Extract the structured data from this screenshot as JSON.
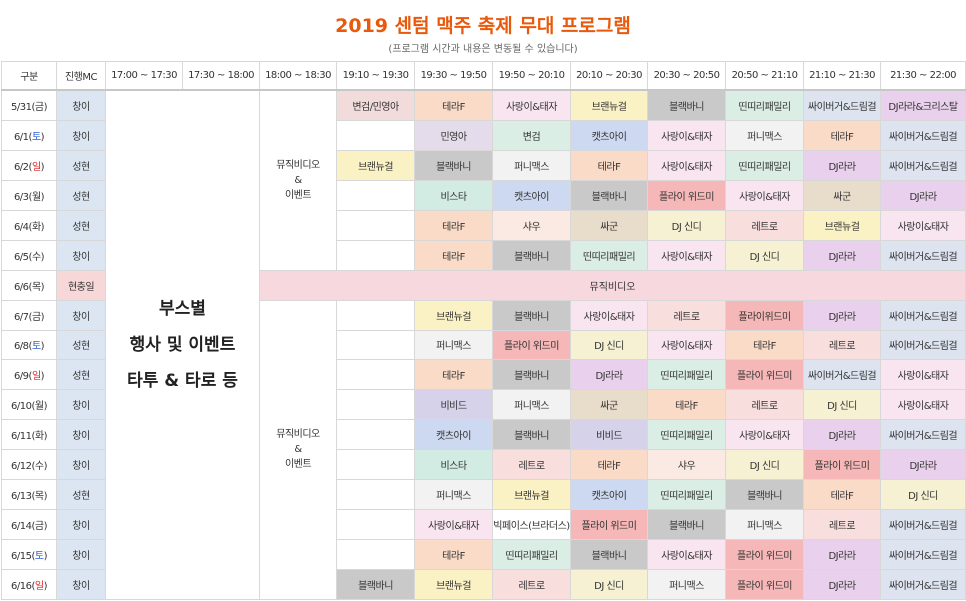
{
  "title": "2019 센텀 맥주 축제 무대 프로그램",
  "subtitle": "(프로그램 시간과 내용은 변동될 수 있습니다)",
  "headers": [
    "구분",
    "진행MC",
    "17:00 ~ 17:30",
    "17:30 ~ 18:00",
    "18:00 ~ 18:30",
    "19:10 ~ 19:30",
    "19:30 ~ 19:50",
    "19:50 ~ 20:10",
    "20:10 ~ 20:30",
    "20:30 ~ 20:50",
    "20:50 ~ 21:10",
    "21:10 ~ 21:30",
    "21:30 ~ 22:00"
  ],
  "booth": {
    "line1": "부스별",
    "line2": "행사 및 이벤트",
    "line3": "타투 & 타로 등"
  },
  "event1": {
    "line1": "뮤직비디오",
    "line2": "&",
    "line3": "이벤트"
  },
  "event2": {
    "line1": "뮤직비디오",
    "line2": "&",
    "line3": "이벤트"
  },
  "banner": "뮤직비디오",
  "colors": {
    "title": "#e8590c",
    "frame": "#f0a05a",
    "sat_day": "#2f5fd0",
    "sun_day": "#e02020",
    "mc_default": "#dce6f2",
    "mc_highlight": "#f7d7d7"
  },
  "rows": [
    {
      "date_pre": "5/31(",
      "day": "금",
      "date_post": ")",
      "mc": "창이",
      "c1910": {
        "t": "변검/민영아",
        "bg": "#f2dcdb"
      },
      "slots": [
        {
          "t": "테라F",
          "bg": "#fadbc8"
        },
        {
          "t": "사랑이&태자",
          "bg": "#f9e5ef"
        },
        {
          "t": "브랜뉴걸",
          "bg": "#faf1c4"
        },
        {
          "t": "블랙바니",
          "bg": "#c9c9c9"
        },
        {
          "t": "띤띠리패밀리",
          "bg": "#dbeee6"
        },
        {
          "t": "싸이버거&드림걸",
          "bg": "#dde3ef"
        },
        {
          "t": "DJ라라&크리스탈",
          "bg": "#e9d0ec"
        }
      ]
    },
    {
      "date_pre": "6/1(",
      "day": "토",
      "date_post": ")",
      "mc": "창이",
      "c1910": {
        "t": "",
        "bg": "#ffffff"
      },
      "slots": [
        {
          "t": "민영아",
          "bg": "#e4dcea"
        },
        {
          "t": "변검",
          "bg": "#dbeee6"
        },
        {
          "t": "캣츠아이",
          "bg": "#cdd9f0"
        },
        {
          "t": "사랑이&태자",
          "bg": "#f9e5ef"
        },
        {
          "t": "퍼니맥스",
          "bg": "#f2f2f2"
        },
        {
          "t": "테라F",
          "bg": "#fadbc8"
        },
        {
          "t": "싸이버거&드림걸",
          "bg": "#dde3ef"
        }
      ]
    },
    {
      "date_pre": "6/2(",
      "day": "일",
      "date_post": ")",
      "mc": "성현",
      "c1910": {
        "t": "브랜뉴걸",
        "bg": "#faf1c4"
      },
      "slots": [
        {
          "t": "블랙바니",
          "bg": "#c9c9c9"
        },
        {
          "t": "퍼니맥스",
          "bg": "#f2f2f2"
        },
        {
          "t": "테라F",
          "bg": "#fadbc8"
        },
        {
          "t": "사랑이&태자",
          "bg": "#f9e5ef"
        },
        {
          "t": "띤띠리패밀리",
          "bg": "#dbeee6"
        },
        {
          "t": "DJ라라",
          "bg": "#e9d0ec"
        },
        {
          "t": "싸이버거&드림걸",
          "bg": "#dde3ef"
        }
      ]
    },
    {
      "date_pre": "6/3(",
      "day": "월",
      "date_post": ")",
      "mc": "성현",
      "c1910": {
        "t": "",
        "bg": "#ffffff"
      },
      "slots": [
        {
          "t": "비스타",
          "bg": "#d2ece4"
        },
        {
          "t": "캣츠아이",
          "bg": "#cdd9f0"
        },
        {
          "t": "블랙바니",
          "bg": "#c9c9c9"
        },
        {
          "t": "플라이 위드미",
          "bg": "#f5b7b7"
        },
        {
          "t": "사랑이&태자",
          "bg": "#f9e5ef"
        },
        {
          "t": "싸군",
          "bg": "#e8dccb"
        },
        {
          "t": "DJ라라",
          "bg": "#e9d0ec"
        }
      ]
    },
    {
      "date_pre": "6/4(",
      "day": "화",
      "date_post": ")",
      "mc": "성현",
      "c1910": {
        "t": "",
        "bg": "#ffffff"
      },
      "slots": [
        {
          "t": "테라F",
          "bg": "#fadbc8"
        },
        {
          "t": "샤우",
          "bg": "#fbe9e3"
        },
        {
          "t": "싸군",
          "bg": "#e8dccb"
        },
        {
          "t": "DJ 신디",
          "bg": "#f6f1d2"
        },
        {
          "t": "레트로",
          "bg": "#f9dede"
        },
        {
          "t": "브랜뉴걸",
          "bg": "#faf1c4"
        },
        {
          "t": "사랑이&태자",
          "bg": "#f9e5ef"
        }
      ]
    },
    {
      "date_pre": "6/5(",
      "day": "수",
      "date_post": ")",
      "mc": "창이",
      "c1910": {
        "t": "",
        "bg": "#ffffff"
      },
      "slots": [
        {
          "t": "테라F",
          "bg": "#fadbc8"
        },
        {
          "t": "블랙바니",
          "bg": "#c9c9c9"
        },
        {
          "t": "띤띠리패밀리",
          "bg": "#dbeee6"
        },
        {
          "t": "사랑이&태자",
          "bg": "#f9e5ef"
        },
        {
          "t": "DJ 신디",
          "bg": "#f6f1d2"
        },
        {
          "t": "DJ라라",
          "bg": "#e9d0ec"
        },
        {
          "t": "싸이버거&드림걸",
          "bg": "#dde3ef"
        }
      ]
    },
    {
      "date_pre": "6/6(",
      "day": "목",
      "date_post": ")",
      "mc": "현충일",
      "banner": true
    },
    {
      "date_pre": "6/7(",
      "day": "금",
      "date_post": ")",
      "mc": "창이",
      "c1910": {
        "t": "",
        "bg": "#ffffff"
      },
      "slots": [
        {
          "t": "브랜뉴걸",
          "bg": "#faf1c4"
        },
        {
          "t": "블랙바니",
          "bg": "#c9c9c9"
        },
        {
          "t": "사랑이&태자",
          "bg": "#f9e5ef"
        },
        {
          "t": "레트로",
          "bg": "#f9dede"
        },
        {
          "t": "플라이위드미",
          "bg": "#f5b7b7"
        },
        {
          "t": "DJ라라",
          "bg": "#e9d0ec"
        },
        {
          "t": "싸이버거&드림걸",
          "bg": "#dde3ef"
        }
      ]
    },
    {
      "date_pre": "6/8(",
      "day": "토",
      "date_post": ")",
      "mc": "성현",
      "c1910": {
        "t": "",
        "bg": "#ffffff"
      },
      "slots": [
        {
          "t": "퍼니맥스",
          "bg": "#f2f2f2"
        },
        {
          "t": "플라이 위드미",
          "bg": "#f5b7b7"
        },
        {
          "t": "DJ 신디",
          "bg": "#f6f1d2"
        },
        {
          "t": "사랑이&태자",
          "bg": "#f9e5ef"
        },
        {
          "t": "테라F",
          "bg": "#fadbc8"
        },
        {
          "t": "레트로",
          "bg": "#f9dede"
        },
        {
          "t": "싸이버거&드림걸",
          "bg": "#dde3ef"
        }
      ]
    },
    {
      "date_pre": "6/9(",
      "day": "일",
      "date_post": ")",
      "mc": "성현",
      "c1910": {
        "t": "",
        "bg": "#ffffff"
      },
      "slots": [
        {
          "t": "테라F",
          "bg": "#fadbc8"
        },
        {
          "t": "블랙바니",
          "bg": "#c9c9c9"
        },
        {
          "t": "DJ라라",
          "bg": "#e9d0ec"
        },
        {
          "t": "띤띠리패밀리",
          "bg": "#dbeee6"
        },
        {
          "t": "플라이 위드미",
          "bg": "#f5b7b7"
        },
        {
          "t": "싸이버거&드림걸",
          "bg": "#dde3ef"
        },
        {
          "t": "사랑이&태자",
          "bg": "#f9e5ef"
        }
      ]
    },
    {
      "date_pre": "6/10(",
      "day": "월",
      "date_post": ")",
      "mc": "창이",
      "c1910": {
        "t": "",
        "bg": "#ffffff"
      },
      "slots": [
        {
          "t": "비비드",
          "bg": "#d5d2ea"
        },
        {
          "t": "퍼니맥스",
          "bg": "#f2f2f2"
        },
        {
          "t": "싸군",
          "bg": "#e8dccb"
        },
        {
          "t": "테라F",
          "bg": "#fadbc8"
        },
        {
          "t": "레트로",
          "bg": "#f9dede"
        },
        {
          "t": "DJ 신디",
          "bg": "#f6f1d2"
        },
        {
          "t": "사랑이&태자",
          "bg": "#f9e5ef"
        }
      ]
    },
    {
      "date_pre": "6/11(",
      "day": "화",
      "date_post": ")",
      "mc": "창이",
      "c1910": {
        "t": "",
        "bg": "#ffffff"
      },
      "slots": [
        {
          "t": "캣츠아이",
          "bg": "#cdd9f0"
        },
        {
          "t": "블랙바니",
          "bg": "#c9c9c9"
        },
        {
          "t": "비비드",
          "bg": "#d5d2ea"
        },
        {
          "t": "띤띠리패밀리",
          "bg": "#dbeee6"
        },
        {
          "t": "사랑이&태자",
          "bg": "#f9e5ef"
        },
        {
          "t": "DJ라라",
          "bg": "#e9d0ec"
        },
        {
          "t": "싸이버거&드림걸",
          "bg": "#dde3ef"
        }
      ]
    },
    {
      "date_pre": "6/12(",
      "day": "수",
      "date_post": ")",
      "mc": "창이",
      "c1910": {
        "t": "",
        "bg": "#ffffff"
      },
      "slots": [
        {
          "t": "비스타",
          "bg": "#d2ece4"
        },
        {
          "t": "레트로",
          "bg": "#f9dede"
        },
        {
          "t": "테라F",
          "bg": "#fadbc8"
        },
        {
          "t": "샤우",
          "bg": "#fbe9e3"
        },
        {
          "t": "DJ 신디",
          "bg": "#f6f1d2"
        },
        {
          "t": "플라이 위드미",
          "bg": "#f5b7b7"
        },
        {
          "t": "DJ라라",
          "bg": "#e9d0ec"
        }
      ]
    },
    {
      "date_pre": "6/13(",
      "day": "목",
      "date_post": ")",
      "mc": "성현",
      "c1910": {
        "t": "",
        "bg": "#ffffff"
      },
      "slots": [
        {
          "t": "퍼니맥스",
          "bg": "#f2f2f2"
        },
        {
          "t": "브랜뉴걸",
          "bg": "#faf1c4"
        },
        {
          "t": "캣츠아이",
          "bg": "#cdd9f0"
        },
        {
          "t": "띤띠리패밀리",
          "bg": "#dbeee6"
        },
        {
          "t": "블랙바니",
          "bg": "#c9c9c9"
        },
        {
          "t": "테라F",
          "bg": "#fadbc8"
        },
        {
          "t": "DJ 신디",
          "bg": "#f6f1d2"
        }
      ]
    },
    {
      "date_pre": "6/14(",
      "day": "금",
      "date_post": ")",
      "mc": "창이",
      "c1910": {
        "t": "",
        "bg": "#ffffff"
      },
      "slots": [
        {
          "t": "사랑이&태자",
          "bg": "#f9e5ef"
        },
        {
          "t": "빅페이스(브라더스)",
          "bg": "#ffffff"
        },
        {
          "t": "플라이 위드미",
          "bg": "#f5b7b7"
        },
        {
          "t": "블랙바니",
          "bg": "#c9c9c9"
        },
        {
          "t": "퍼니맥스",
          "bg": "#f2f2f2"
        },
        {
          "t": "레트로",
          "bg": "#f9dede"
        },
        {
          "t": "싸이버거&드림걸",
          "bg": "#dde3ef"
        }
      ]
    },
    {
      "date_pre": "6/15(",
      "day": "토",
      "date_post": ")",
      "mc": "창이",
      "c1910": {
        "t": "",
        "bg": "#ffffff"
      },
      "slots": [
        {
          "t": "테라F",
          "bg": "#fadbc8"
        },
        {
          "t": "띤띠리패밀리",
          "bg": "#dbeee6"
        },
        {
          "t": "블랙바니",
          "bg": "#c9c9c9"
        },
        {
          "t": "사랑이&태자",
          "bg": "#f9e5ef"
        },
        {
          "t": "플라이 위드미",
          "bg": "#f5b7b7"
        },
        {
          "t": "DJ라라",
          "bg": "#e9d0ec"
        },
        {
          "t": "싸이버거&드림걸",
          "bg": "#dde3ef"
        }
      ]
    },
    {
      "date_pre": "6/16(",
      "day": "일",
      "date_post": ")",
      "mc": "창이",
      "c1910": {
        "t": "블랙바니",
        "bg": "#c9c9c9"
      },
      "slots": [
        {
          "t": "브랜뉴걸",
          "bg": "#faf1c4"
        },
        {
          "t": "레트로",
          "bg": "#f9dede"
        },
        {
          "t": "DJ 신디",
          "bg": "#f6f1d2"
        },
        {
          "t": "퍼니맥스",
          "bg": "#f2f2f2"
        },
        {
          "t": "플라이 위드미",
          "bg": "#f5b7b7"
        },
        {
          "t": "DJ라라",
          "bg": "#e9d0ec"
        },
        {
          "t": "싸이버거&드림걸",
          "bg": "#dde3ef"
        }
      ]
    }
  ]
}
